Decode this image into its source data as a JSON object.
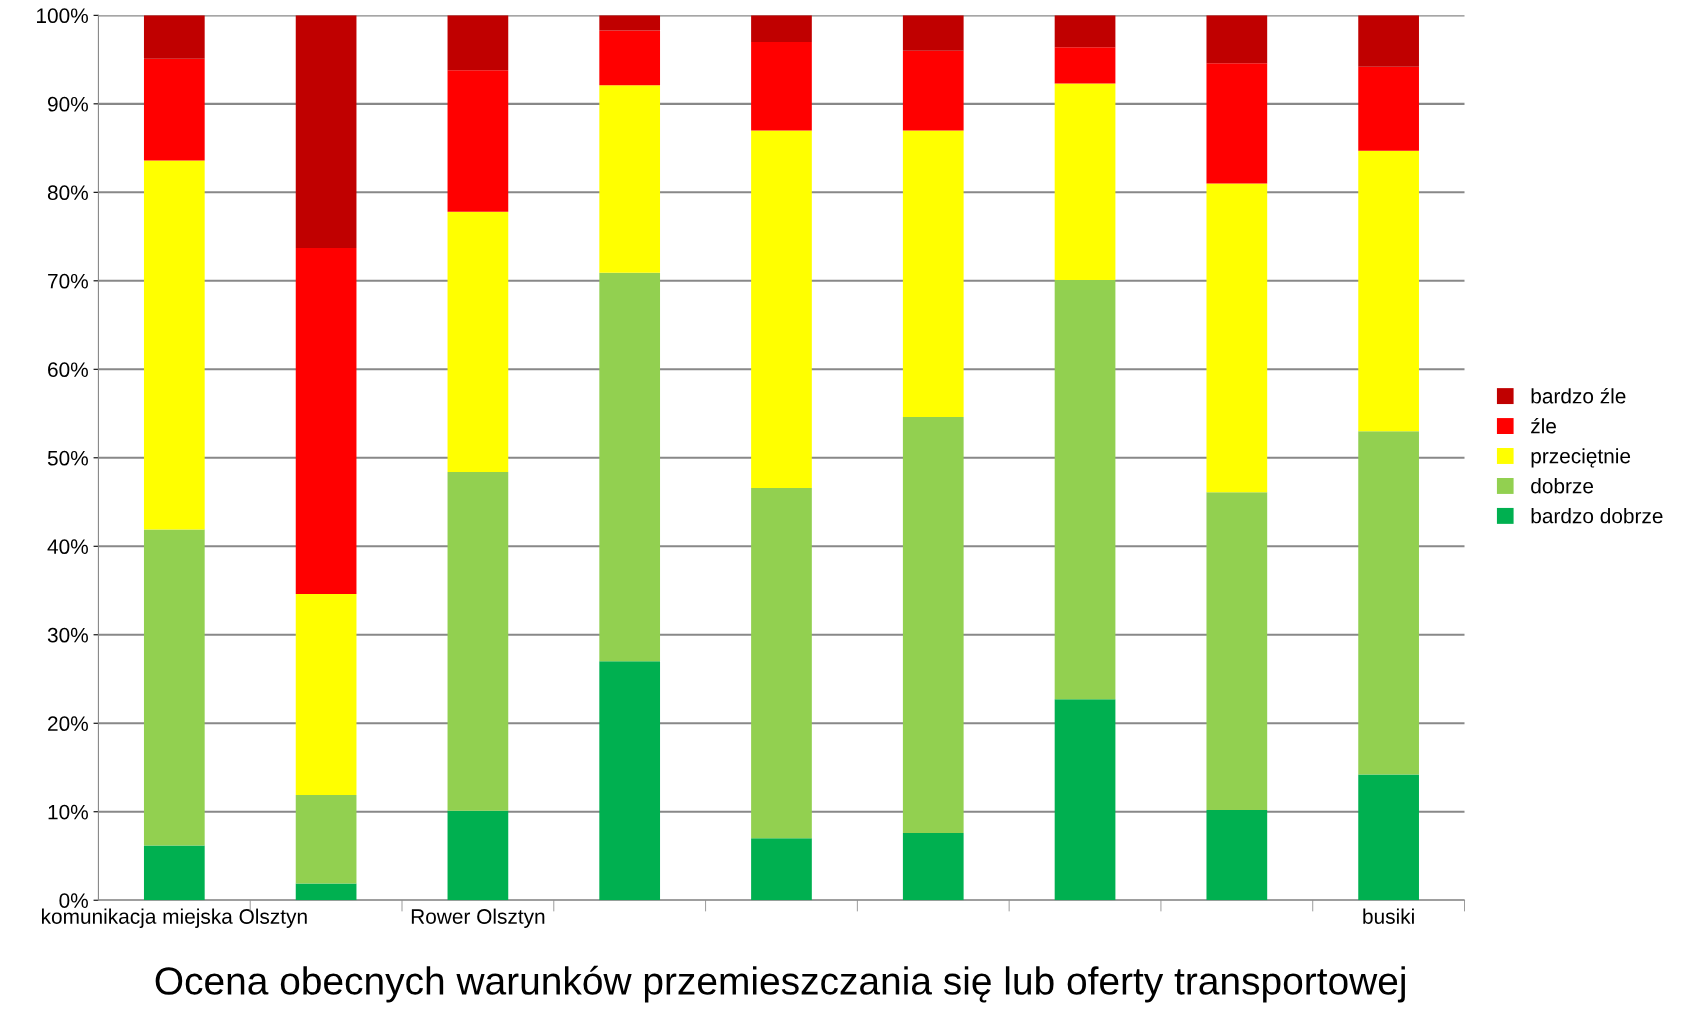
{
  "chart_data": {
    "type": "bar",
    "stacked": true,
    "title": "Ocena obecnych warunków przemieszczania się lub oferty transportowej",
    "categories": [
      "komunikacja miejska Olsztyn",
      null,
      "Rower Olsztyn",
      null,
      null,
      null,
      null,
      null,
      "busiki"
    ],
    "series": [
      {
        "name": "bardzo dobrze",
        "color": "#00b050",
        "values": [
          6.2,
          1.9,
          10.1,
          27.0,
          7.0,
          7.6,
          22.7,
          10.2,
          14.2
        ]
      },
      {
        "name": "dobrze",
        "color": "#92d050",
        "values": [
          35.7,
          10.0,
          38.3,
          43.9,
          39.6,
          47.0,
          47.4,
          35.9,
          38.8
        ]
      },
      {
        "name": "przeciętnie",
        "color": "#ffff00",
        "values": [
          41.7,
          22.7,
          29.4,
          21.2,
          40.4,
          32.4,
          22.2,
          34.9,
          31.7
        ]
      },
      {
        "name": "źle",
        "color": "#ff0000",
        "values": [
          11.5,
          39.1,
          16.0,
          6.2,
          10.0,
          9.0,
          4.1,
          13.6,
          9.5
        ]
      },
      {
        "name": "bardzo źle",
        "color": "#c00000",
        "values": [
          4.9,
          26.3,
          6.2,
          1.7,
          3.0,
          4.0,
          3.6,
          5.4,
          5.8
        ]
      }
    ],
    "ylim": [
      0,
      100
    ],
    "yticks": [
      {
        "value": 0,
        "label": "0%"
      },
      {
        "value": 10,
        "label": "10%"
      },
      {
        "value": 20,
        "label": "20%"
      },
      {
        "value": 30,
        "label": "30%"
      },
      {
        "value": 40,
        "label": "40%"
      },
      {
        "value": 50,
        "label": "50%"
      },
      {
        "value": 60,
        "label": "60%"
      },
      {
        "value": 70,
        "label": "70%"
      },
      {
        "value": 80,
        "label": "80%"
      },
      {
        "value": 90,
        "label": "90%"
      },
      {
        "value": 100,
        "label": "100%"
      }
    ],
    "grid": "y",
    "legend": "right"
  }
}
